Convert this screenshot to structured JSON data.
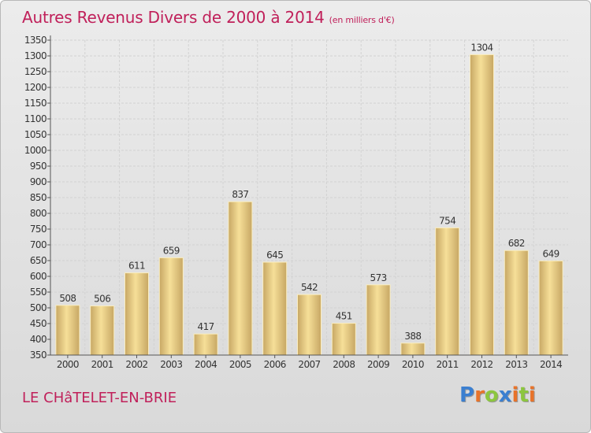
{
  "header": {
    "title": "Autres Revenus Divers de 2000 à 2014",
    "subtitle": "(en milliers d'€)"
  },
  "footer": {
    "city": "LE CHâTELET-EN-BRIE",
    "logo_letters": [
      {
        "ch": "P",
        "color": "#3b7fd0"
      },
      {
        "ch": "r",
        "color": "#e8732a"
      },
      {
        "ch": "o",
        "color": "#8cc63f"
      },
      {
        "ch": "x",
        "color": "#3b7fd0"
      },
      {
        "ch": "i",
        "color": "#e8732a"
      },
      {
        "ch": "t",
        "color": "#8cc63f"
      },
      {
        "ch": "i",
        "color": "#e8732a"
      }
    ]
  },
  "colors": {
    "bar_light": "#f6df98",
    "bar_dark": "#c7a764",
    "grid": "#d2d2d2",
    "axis": "#555555",
    "title": "#c0205a"
  },
  "chart_data": {
    "type": "bar",
    "categories": [
      "2000",
      "2001",
      "2002",
      "2003",
      "2004",
      "2005",
      "2006",
      "2007",
      "2008",
      "2009",
      "2010",
      "2011",
      "2012",
      "2013",
      "2014"
    ],
    "values": [
      508,
      506,
      611,
      659,
      417,
      837,
      645,
      542,
      451,
      573,
      388,
      754,
      1304,
      682,
      649
    ],
    "ylim": [
      350,
      1350
    ],
    "ytick_step": 50,
    "grid": true
  }
}
